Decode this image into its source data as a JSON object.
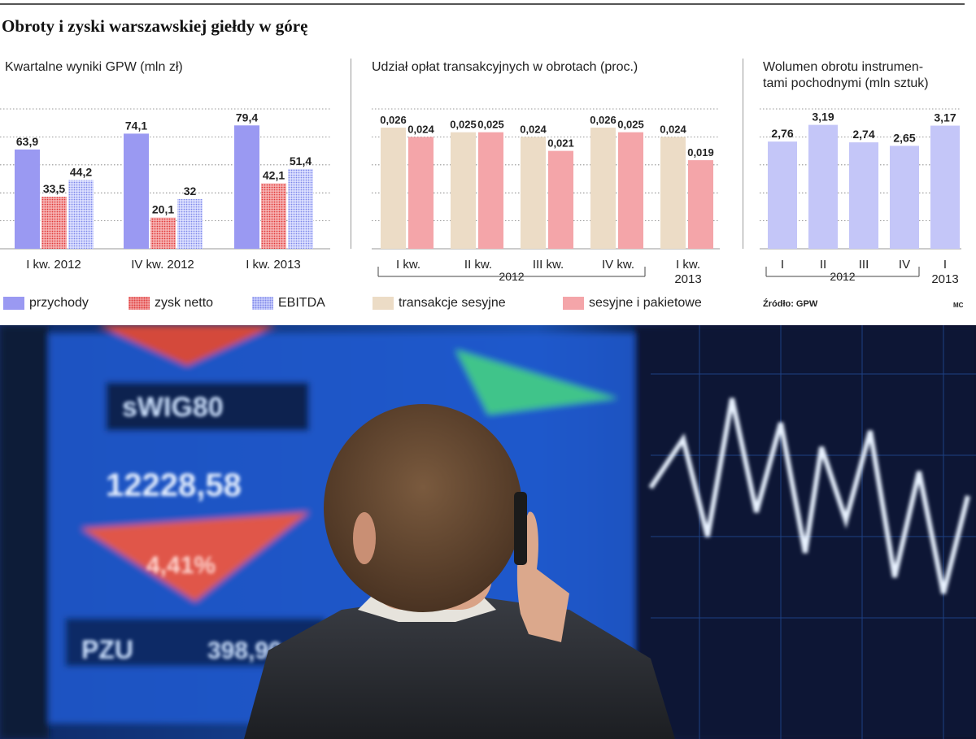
{
  "title": "Obroty i zyski warszawskiej giełdy w górę",
  "colors": {
    "przychody": "#9a99f2",
    "zysk_netto": "#f4a9a9",
    "ebitda": "#d4d9ff",
    "transakcje_sesyjne": "#ecdcc6",
    "sesyjne_i_pakietowe": "#f4a5a9",
    "wolumen": "#c4c6f8"
  },
  "legend": {
    "przychody": "przychody",
    "zysk_netto": "zysk netto",
    "ebitda": "EBITDA",
    "transakcje_sesyjne": "transakcje sesyjne",
    "sesyjne_i_pakietowe": "sesyjne i pakietowe"
  },
  "source": "Źródło: GPW",
  "credit": "MC",
  "chart_data": [
    {
      "type": "bar",
      "title": "Kwartalne wyniki GPW (mln zł)",
      "categories": [
        "I kw. 2012",
        "IV kw. 2012",
        "I kw. 2013"
      ],
      "series": [
        {
          "name": "przychody",
          "values": [
            63.9,
            74.1,
            79.4
          ],
          "labels": [
            "63,9",
            "74,1",
            "79,4"
          ]
        },
        {
          "name": "zysk netto",
          "values": [
            33.5,
            20.1,
            42.1
          ],
          "labels": [
            "33,5",
            "20,1",
            "42,1"
          ]
        },
        {
          "name": "EBITDA",
          "values": [
            44.2,
            32,
            51.4
          ],
          "labels": [
            "44,2",
            "32",
            "51,4"
          ]
        }
      ],
      "ylim": [
        0,
        90
      ]
    },
    {
      "type": "bar",
      "title": "Udział opłat transakcyjnych w obrotach (proc.)",
      "categories": [
        "I kw.",
        "II kw.",
        "III kw.",
        "IV kw.",
        "I kw."
      ],
      "category_sublabels": [
        "",
        "",
        "",
        "",
        "2013"
      ],
      "group_label": "2012",
      "series": [
        {
          "name": "transakcje sesyjne",
          "values": [
            0.026,
            0.025,
            0.024,
            0.026,
            0.024
          ],
          "labels": [
            "0,026",
            "0,025",
            "0,024",
            "0,026",
            "0,024"
          ]
        },
        {
          "name": "sesyjne i pakietowe",
          "values": [
            0.024,
            0.025,
            0.021,
            0.025,
            0.019
          ],
          "labels": [
            "0,024",
            "0,025",
            "0,021",
            "0,025",
            "0,019"
          ]
        }
      ],
      "ylim": [
        0,
        0.03
      ]
    },
    {
      "type": "bar",
      "title": "Wolumen obrotu instrumen-tami pochodnymi (mln sztuk)",
      "title_lines": [
        "Wolumen obrotu instrumen-",
        "tami pochodnymi (mln sztuk)"
      ],
      "categories": [
        "I",
        "II",
        "III",
        "IV",
        "I"
      ],
      "category_sublabels": [
        "",
        "",
        "",
        "",
        "2013"
      ],
      "group_label": "2012",
      "series": [
        {
          "name": "wolumen",
          "values": [
            2.76,
            3.19,
            2.74,
            2.65,
            3.17
          ],
          "labels": [
            "2,76",
            "3,19",
            "2,74",
            "2,65",
            "3,17"
          ]
        }
      ],
      "ylim": [
        0,
        3.6
      ]
    }
  ],
  "photo": {
    "screen_texts": [
      "sWIG80",
      "12228,58",
      "4,41%",
      "PZU",
      "398,90"
    ]
  }
}
